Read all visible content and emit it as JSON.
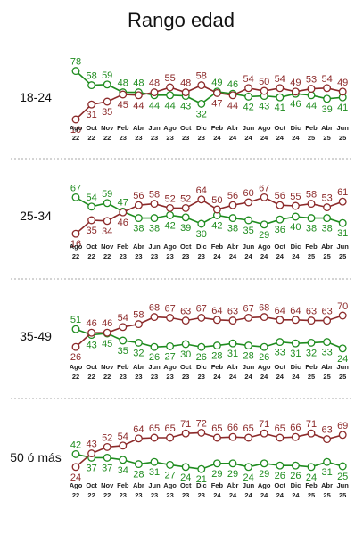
{
  "title": "Rango edad",
  "colors": {
    "green": "#1f8c1f",
    "red": "#8c2a2a"
  },
  "chart_data": {
    "type": "line",
    "x_top": [
      "Ago",
      "Oct",
      "Nov",
      "Feb",
      "Abr",
      "Jun",
      "Ago",
      "Oct",
      "Dic",
      "Feb",
      "Abr",
      "Jun",
      "Ago",
      "Oct",
      "Dic",
      "Feb",
      "Abr",
      "Jun"
    ],
    "x_bottom": [
      "22",
      "22",
      "22",
      "23",
      "23",
      "23",
      "23",
      "23",
      "23",
      "24",
      "24",
      "24",
      "24",
      "24",
      "24",
      "25",
      "25",
      "25"
    ],
    "panels": [
      {
        "label": "18-24",
        "series": [
          {
            "color": "green",
            "values": [
              78,
              58,
              59,
              48,
              48,
              44,
              44,
              43,
              32,
              49,
              46,
              42,
              43,
              41,
              46,
              44,
              39,
              41
            ]
          },
          {
            "color": "red",
            "values": [
              10,
              31,
              35,
              45,
              44,
              48,
              55,
              48,
              58,
              47,
              44,
              54,
              50,
              54,
              49,
              53,
              54,
              49
            ]
          }
        ]
      },
      {
        "label": "25-34",
        "series": [
          {
            "color": "green",
            "values": [
              67,
              54,
              59,
              47,
              38,
              38,
              42,
              39,
              30,
              42,
              38,
              35,
              29,
              36,
              40,
              38,
              38,
              31
            ]
          },
          {
            "color": "red",
            "values": [
              16,
              35,
              34,
              46,
              56,
              58,
              52,
              52,
              64,
              50,
              56,
              60,
              67,
              56,
              55,
              58,
              53,
              61
            ]
          }
        ]
      },
      {
        "label": "35-49",
        "series": [
          {
            "color": "green",
            "values": [
              51,
              43,
              45,
              35,
              32,
              26,
              27,
              30,
              26,
              28,
              31,
              28,
              26,
              33,
              31,
              32,
              33,
              24
            ]
          },
          {
            "color": "red",
            "values": [
              26,
              46,
              46,
              54,
              58,
              68,
              67,
              63,
              67,
              64,
              63,
              67,
              68,
              64,
              64,
              63,
              63,
              70
            ]
          }
        ]
      },
      {
        "label": "50 ó más",
        "series": [
          {
            "color": "green",
            "values": [
              42,
              37,
              37,
              34,
              28,
              31,
              27,
              24,
              21,
              29,
              29,
              24,
              29,
              26,
              26,
              24,
              31,
              25
            ]
          },
          {
            "color": "red",
            "values": [
              24,
              43,
              52,
              54,
              64,
              65,
              65,
              71,
              72,
              65,
              66,
              65,
              71,
              65,
              66,
              71,
              63,
              69
            ]
          }
        ]
      }
    ]
  }
}
